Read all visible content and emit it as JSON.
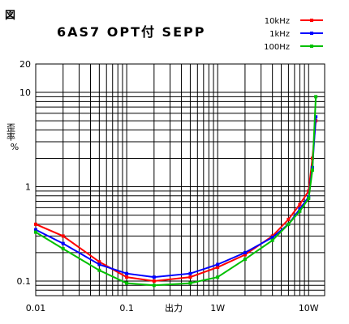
{
  "figure_label": "図",
  "chart_data": {
    "type": "line",
    "title": "6AS7 OPT付 SEPP",
    "xlabel": "出力",
    "ylabel": "歪率 %",
    "x_scale": "log",
    "y_scale": "log",
    "xlim": [
      0.01,
      15
    ],
    "ylim": [
      0.07,
      20
    ],
    "grid": true,
    "legend_position": "top-right",
    "x_ticks": [
      {
        "value": 0.01,
        "label": "0.01"
      },
      {
        "value": 0.1,
        "label": "0.1"
      },
      {
        "value": 1,
        "label": "1W"
      },
      {
        "value": 10,
        "label": "10W"
      }
    ],
    "y_ticks": [
      {
        "value": 0.1,
        "label": "0.1"
      },
      {
        "value": 1,
        "label": "1"
      },
      {
        "value": 10,
        "label": "10"
      },
      {
        "value": 20,
        "label": "20"
      }
    ],
    "series": [
      {
        "name": "10kHz",
        "color": "#ff0000",
        "x": [
          0.01,
          0.02,
          0.05,
          0.1,
          0.2,
          0.5,
          1,
          2,
          4,
          6,
          8,
          10,
          11,
          12
        ],
        "y": [
          0.4,
          0.3,
          0.16,
          0.11,
          0.1,
          0.11,
          0.14,
          0.19,
          0.3,
          0.45,
          0.65,
          0.9,
          2,
          5
        ]
      },
      {
        "name": "1kHz",
        "color": "#0000ff",
        "x": [
          0.01,
          0.02,
          0.05,
          0.1,
          0.2,
          0.5,
          1,
          2,
          4,
          6,
          8,
          10,
          11,
          12
        ],
        "y": [
          0.35,
          0.25,
          0.15,
          0.12,
          0.11,
          0.12,
          0.15,
          0.2,
          0.29,
          0.4,
          0.58,
          0.78,
          1.6,
          5.5
        ]
      },
      {
        "name": "100Hz",
        "color": "#00c000",
        "x": [
          0.01,
          0.02,
          0.05,
          0.1,
          0.2,
          0.5,
          1,
          2,
          4,
          6,
          8,
          10,
          11,
          12
        ],
        "y": [
          0.33,
          0.22,
          0.13,
          0.095,
          0.09,
          0.095,
          0.11,
          0.17,
          0.27,
          0.4,
          0.55,
          0.75,
          1.5,
          9
        ]
      }
    ]
  }
}
